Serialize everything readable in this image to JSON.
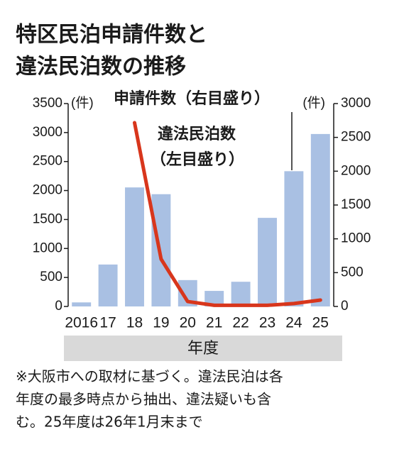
{
  "chart_data": {
    "type": "bar",
    "title_lines": [
      "特区民泊申請件数と",
      "違法民泊数の推移"
    ],
    "y_unit": "(件)",
    "y2_unit": "(件)",
    "x_label": "年度",
    "categories": [
      "2016",
      "17",
      "18",
      "19",
      "20",
      "21",
      "22",
      "23",
      "24",
      "25"
    ],
    "series": [
      {
        "type": "bar",
        "axis": "y2",
        "color": "#a9c0e3",
        "values": [
          60,
          620,
          1760,
          1660,
          390,
          230,
          365,
          1310,
          2000,
          2550
        ]
      },
      {
        "type": "line",
        "axis": "y",
        "color": "#d8361c",
        "values": [
          null,
          null,
          3170,
          817,
          85,
          20,
          20,
          20,
          50,
          110
        ]
      }
    ],
    "annotations": [
      "申請件数（右目盛り）",
      "違法民泊数",
      "（左目盛り）"
    ],
    "ylim": [
      0,
      3500
    ],
    "yticks": [
      0,
      500,
      1000,
      1500,
      2000,
      2500,
      3000,
      3500
    ],
    "y2lim": [
      0,
      3000
    ],
    "y2ticks": [
      0,
      500,
      1000,
      1500,
      2000,
      2500,
      3000
    ],
    "note_lines": [
      "※大阪市への取材に基づく。違法民泊は各",
      "年度の最多時点から抽出、違法疑いも含",
      "む。25年度は26年1月末まで"
    ]
  }
}
